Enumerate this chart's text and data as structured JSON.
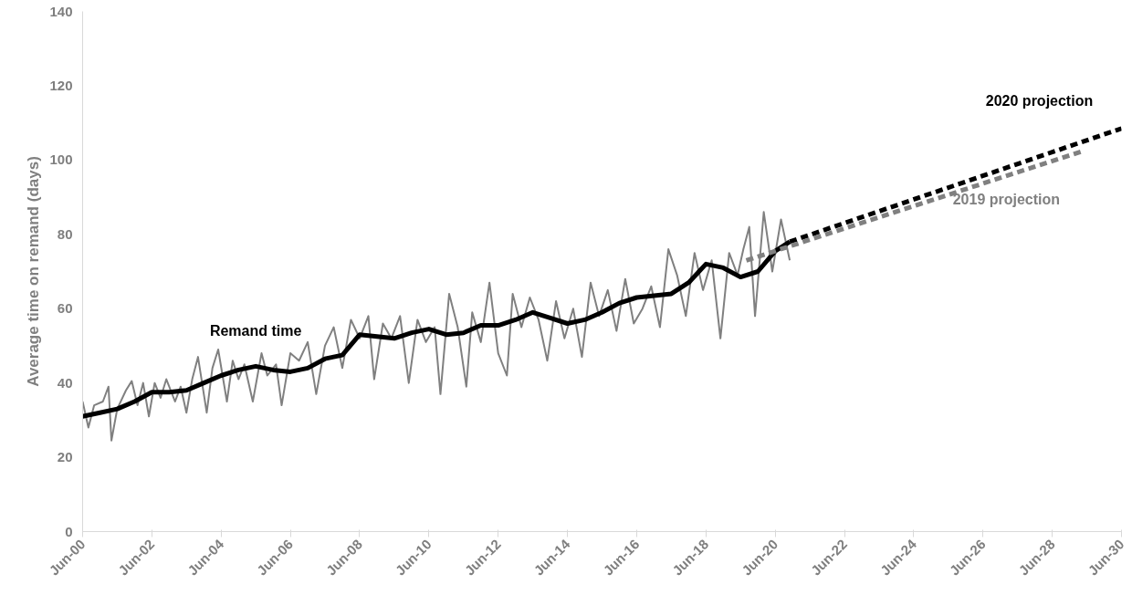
{
  "chart_data": {
    "type": "line",
    "ylabel": "Average time on remand (days)",
    "xlim": [
      "2000-06",
      "2030-06"
    ],
    "ylim": [
      0,
      140
    ],
    "yticks": [
      0,
      20,
      40,
      60,
      80,
      100,
      120,
      140
    ],
    "xticks": [
      {
        "value": "2000-06",
        "label": "Jun-00"
      },
      {
        "value": "2002-06",
        "label": "Jun-02"
      },
      {
        "value": "2004-06",
        "label": "Jun-04"
      },
      {
        "value": "2006-06",
        "label": "Jun-06"
      },
      {
        "value": "2008-06",
        "label": "Jun-08"
      },
      {
        "value": "2010-06",
        "label": "Jun-10"
      },
      {
        "value": "2012-06",
        "label": "Jun-12"
      },
      {
        "value": "2014-06",
        "label": "Jun-14"
      },
      {
        "value": "2016-06",
        "label": "Jun-16"
      },
      {
        "value": "2018-06",
        "label": "Jun-18"
      },
      {
        "value": "2020-06",
        "label": "Jun-20"
      },
      {
        "value": "2022-06",
        "label": "Jun-22"
      },
      {
        "value": "2024-06",
        "label": "Jun-24"
      },
      {
        "value": "2026-06",
        "label": "Jun-26"
      },
      {
        "value": "2028-06",
        "label": "Jun-28"
      },
      {
        "value": "2030-06",
        "label": "Jun-30"
      }
    ],
    "grid": false,
    "series": [
      {
        "color": "#808080",
        "line_style": "solid",
        "x": [
          "2000-06",
          "2000-08",
          "2000-10",
          "2001-01",
          "2001-03",
          "2001-04",
          "2001-06",
          "2001-09",
          "2001-11",
          "2002-01",
          "2002-03",
          "2002-05",
          "2002-07",
          "2002-09",
          "2002-11",
          "2003-02",
          "2003-04",
          "2003-06",
          "2003-08",
          "2003-10",
          "2004-01",
          "2004-03",
          "2004-05",
          "2004-08",
          "2004-10",
          "2004-12",
          "2005-02",
          "2005-05",
          "2005-08",
          "2005-10",
          "2006-01",
          "2006-03",
          "2006-06",
          "2006-09",
          "2006-12",
          "2007-03",
          "2007-06",
          "2007-09",
          "2007-12",
          "2008-03",
          "2008-06",
          "2008-09",
          "2008-11",
          "2009-02",
          "2009-05",
          "2009-08",
          "2009-11",
          "2010-02",
          "2010-05",
          "2010-08",
          "2010-10",
          "2011-01",
          "2011-04",
          "2011-07",
          "2011-09",
          "2011-12",
          "2012-03",
          "2012-06",
          "2012-09",
          "2012-11",
          "2013-02",
          "2013-05",
          "2013-08",
          "2013-11",
          "2014-02",
          "2014-05",
          "2014-08",
          "2014-11",
          "2015-02",
          "2015-05",
          "2015-08",
          "2015-11",
          "2016-02",
          "2016-05",
          "2016-08",
          "2016-11",
          "2017-02",
          "2017-05",
          "2017-08",
          "2017-11",
          "2018-02",
          "2018-05",
          "2018-08",
          "2018-11",
          "2019-02",
          "2019-05",
          "2019-07",
          "2019-09",
          "2019-11",
          "2020-02",
          "2020-05",
          "2020-08",
          "2020-11"
        ],
        "values": [
          35,
          28,
          34,
          35,
          39,
          24.5,
          33,
          38,
          40.5,
          34,
          40,
          31,
          40,
          36,
          41,
          35,
          39,
          32,
          41,
          47,
          32,
          44,
          49,
          35,
          46,
          41,
          45,
          35,
          48,
          42,
          45,
          34,
          48,
          46,
          51,
          37,
          50,
          55,
          44,
          57,
          52,
          58,
          41,
          56,
          52,
          58,
          40,
          57,
          51,
          55,
          37,
          64,
          55,
          39,
          59,
          51,
          67,
          48,
          42,
          64,
          55,
          63,
          57,
          46,
          62,
          52,
          60,
          47,
          67,
          58,
          65,
          54,
          68,
          56,
          60,
          66,
          55,
          76,
          69,
          58,
          75,
          65,
          73,
          52,
          75,
          69,
          76,
          82,
          58,
          86,
          70,
          84,
          73
        ]
      },
      {
        "name": "Remand time",
        "color": "#000000",
        "line_style": "solid",
        "x": [
          "2000-06",
          "2000-12",
          "2001-06",
          "2001-12",
          "2002-06",
          "2002-12",
          "2003-06",
          "2003-12",
          "2004-06",
          "2004-12",
          "2005-06",
          "2005-12",
          "2006-06",
          "2006-12",
          "2007-06",
          "2007-12",
          "2008-06",
          "2008-12",
          "2009-06",
          "2009-12",
          "2010-06",
          "2010-12",
          "2011-06",
          "2011-12",
          "2012-06",
          "2012-12",
          "2013-06",
          "2013-12",
          "2014-06",
          "2014-12",
          "2015-06",
          "2015-12",
          "2016-06",
          "2016-12",
          "2017-06",
          "2017-12",
          "2018-06",
          "2018-12",
          "2019-06",
          "2019-12",
          "2020-06",
          "2020-11"
        ],
        "values": [
          31,
          32,
          33,
          35,
          37.5,
          37.5,
          38,
          40,
          42,
          43.5,
          44.5,
          43.5,
          43,
          44,
          46.5,
          47.5,
          53,
          52.5,
          52,
          53.5,
          54.5,
          53,
          53.5,
          55.5,
          55.5,
          57,
          59,
          57.5,
          56,
          57,
          59,
          61.5,
          63,
          63.5,
          64,
          67,
          72,
          71,
          68.5,
          70,
          75.5,
          78
        ]
      },
      {
        "name": "2020 projection",
        "color": "#000000",
        "line_style": "dashed",
        "x": [
          "2020-11",
          "2030-06"
        ],
        "values": [
          78,
          108.5
        ]
      },
      {
        "name": "2019 projection",
        "color": "#808080",
        "line_style": "dashed",
        "x": [
          "2019-08",
          "2029-05"
        ],
        "values": [
          73,
          102.5
        ]
      }
    ]
  }
}
